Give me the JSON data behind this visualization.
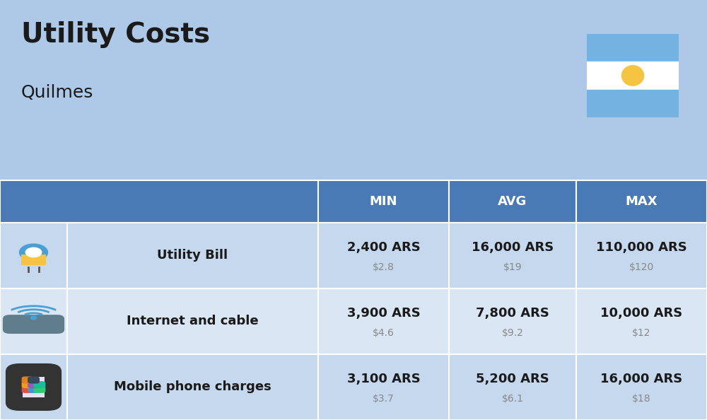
{
  "title": "Utility Costs",
  "subtitle": "Quilmes",
  "background_color": "#aec9e8",
  "header_color": "#4a7ab5",
  "header_text_color": "#ffffff",
  "row_color_dark": "#c5d8ed",
  "row_color_light": "#dae6f3",
  "icon_col_color": "#b8cfe8",
  "text_color": "#1a1a1a",
  "usd_color": "#888888",
  "col_headers": [
    "MIN",
    "AVG",
    "MAX"
  ],
  "rows": [
    {
      "label": "Utility Bill",
      "icon": "utility",
      "min_ars": "2,400 ARS",
      "min_usd": "$2.8",
      "avg_ars": "16,000 ARS",
      "avg_usd": "$19",
      "max_ars": "110,000 ARS",
      "max_usd": "$120"
    },
    {
      "label": "Internet and cable",
      "icon": "internet",
      "min_ars": "3,900 ARS",
      "min_usd": "$4.6",
      "avg_ars": "7,800 ARS",
      "avg_usd": "$9.2",
      "max_ars": "10,000 ARS",
      "max_usd": "$12"
    },
    {
      "label": "Mobile phone charges",
      "icon": "mobile",
      "min_ars": "3,100 ARS",
      "min_usd": "$3.7",
      "avg_ars": "5,200 ARS",
      "avg_usd": "$6.1",
      "max_ars": "16,000 ARS",
      "max_usd": "$18"
    }
  ],
  "title_fontsize": 28,
  "subtitle_fontsize": 18,
  "header_fontsize": 13,
  "label_fontsize": 13,
  "value_fontsize": 13,
  "usd_fontsize": 10
}
